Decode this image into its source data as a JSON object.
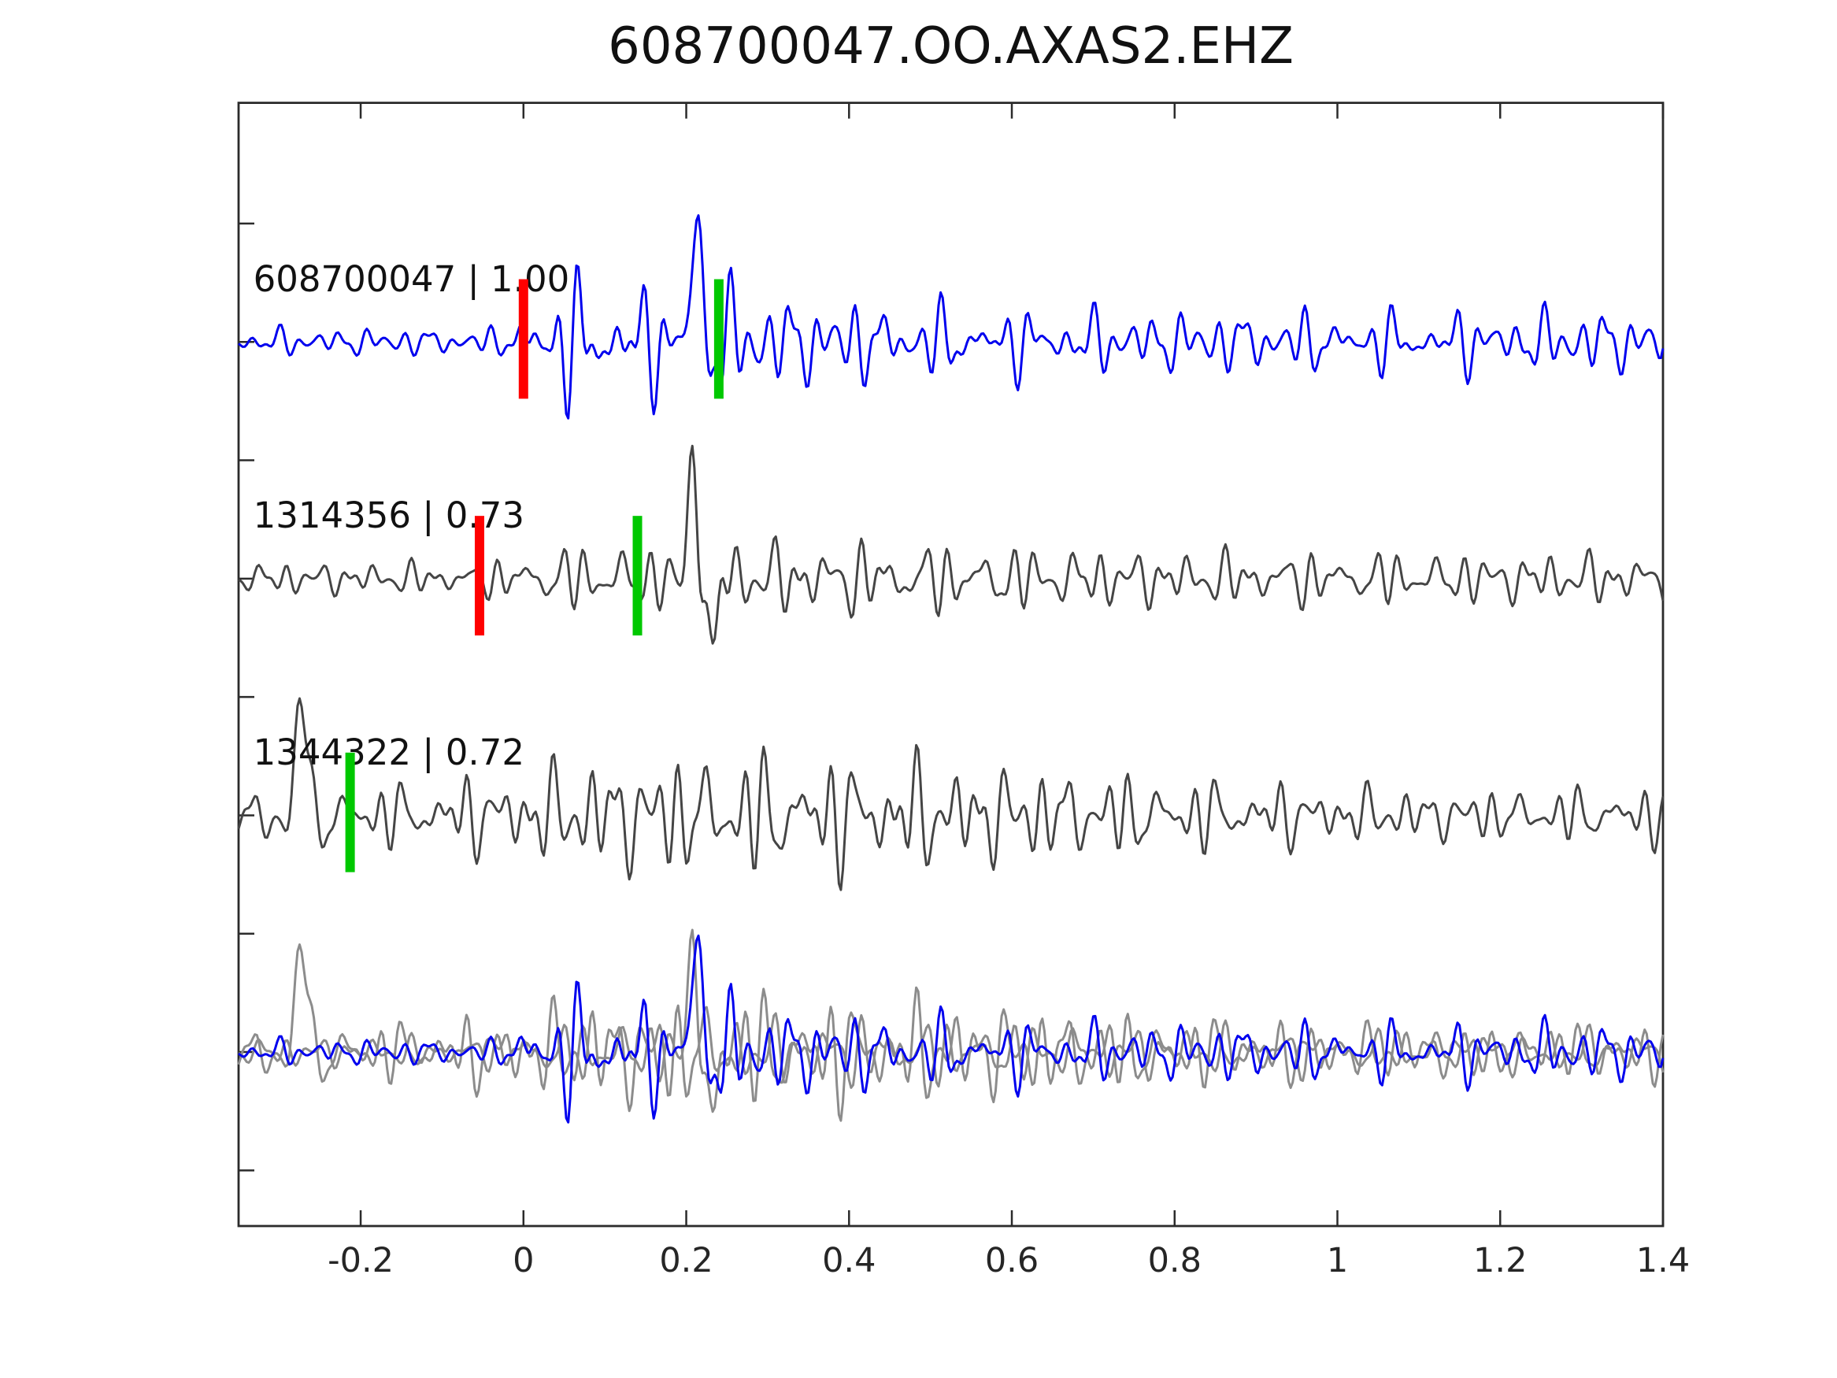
{
  "title": "608700047.OO.AXAS2.EHZ",
  "chart_data": {
    "type": "line",
    "title": "608700047.OO.AXAS2.EHZ",
    "xlabel": "",
    "ylabel": "",
    "xlim": [
      -0.35,
      1.4
    ],
    "ylim": [
      -0.47,
      9.02
    ],
    "grid": false,
    "legend": "none",
    "x_ticks": [
      {
        "v": -0.2,
        "label": "-0.2"
      },
      {
        "v": 0,
        "label": "0"
      },
      {
        "v": 0.2,
        "label": "0.2"
      },
      {
        "v": 0.4,
        "label": "0.4"
      },
      {
        "v": 0.6,
        "label": "0.6"
      },
      {
        "v": 0.8,
        "label": "0.8"
      },
      {
        "v": 1,
        "label": "1"
      },
      {
        "v": 1.2,
        "label": "1.2"
      },
      {
        "v": 1.4,
        "label": "1.4"
      }
    ],
    "y_ticks": [
      0,
      1,
      2,
      3,
      4,
      5,
      6,
      7,
      8
    ],
    "axis_color": "#2b2b2b",
    "marker_colors": {
      "pick-red": "#ff0000",
      "pick-green": "#00c800"
    },
    "label_x": -0.332,
    "traces": [
      {
        "id": "608700047",
        "score": "1.00",
        "label": "608700047 | 1.00",
        "color": "#0000ee",
        "baseline": 7,
        "markers": [
          {
            "type": "pick-red",
            "x": 0.0
          },
          {
            "type": "pick-green",
            "x": 0.24
          }
        ],
        "components": [
          {
            "f": 16,
            "a": 0.16,
            "p": 0.7
          },
          {
            "f": 27,
            "a": 0.24,
            "p": 2.1
          },
          {
            "f": 38,
            "a": 0.26,
            "p": 4.4
          },
          {
            "f": 47,
            "a": 0.2,
            "p": 1.2
          },
          {
            "f": 58,
            "a": 0.14,
            "p": 3.3
          }
        ],
        "envelope": [
          [
            -0.35,
            0.17
          ],
          [
            -0.02,
            0.17
          ],
          [
            0.01,
            0.6
          ],
          [
            0.05,
            0.8
          ],
          [
            0.12,
            0.73
          ],
          [
            0.18,
            0.63
          ],
          [
            0.23,
            0.8
          ],
          [
            0.3,
            0.6
          ],
          [
            0.45,
            0.47
          ],
          [
            0.7,
            0.39
          ],
          [
            1.0,
            0.37
          ],
          [
            1.2,
            0.39
          ],
          [
            1.4,
            0.41
          ]
        ],
        "spikes": [
          {
            "x0": 0.212,
            "A": 1.1,
            "w": 0.013,
            "T": 0.05
          }
        ]
      },
      {
        "id": "1314356",
        "score": "0.73",
        "label": "1314356 | 0.73",
        "color": "#454545",
        "baseline": 5,
        "markers": [
          {
            "type": "pick-red",
            "x": -0.054
          },
          {
            "type": "pick-green",
            "x": 0.14
          }
        ],
        "components": [
          {
            "f": 16,
            "a": 0.16,
            "p": 1.9
          },
          {
            "f": 27,
            "a": 0.24,
            "p": 0.3
          },
          {
            "f": 38,
            "a": 0.26,
            "p": 2.8
          },
          {
            "f": 47,
            "a": 0.2,
            "p": 5.1
          },
          {
            "f": 58,
            "a": 0.14,
            "p": 0.9
          }
        ],
        "envelope": [
          [
            -0.35,
            0.2
          ],
          [
            -0.05,
            0.21
          ],
          [
            0.0,
            0.32
          ],
          [
            0.08,
            0.41
          ],
          [
            0.17,
            0.41
          ],
          [
            0.25,
            0.47
          ],
          [
            0.4,
            0.45
          ],
          [
            0.6,
            0.4
          ],
          [
            0.8,
            0.35
          ],
          [
            1.1,
            0.32
          ],
          [
            1.4,
            0.33
          ]
        ],
        "spikes": [
          {
            "x0": 0.208,
            "A": 1.13,
            "w": 0.011,
            "T": 0.045
          },
          {
            "x0": 0.232,
            "A": -0.63,
            "w": 0.012,
            "T": 0.05
          }
        ]
      },
      {
        "id": "1344322",
        "score": "0.72",
        "label": "1344322 | 0.72",
        "color": "#454545",
        "baseline": 3,
        "markers": [
          {
            "type": "pick-green",
            "x": -0.213
          }
        ],
        "components": [
          {
            "f": 16,
            "a": 0.16,
            "p": 4.2
          },
          {
            "f": 27,
            "a": 0.24,
            "p": 1.1
          },
          {
            "f": 38,
            "a": 0.26,
            "p": 5.8
          },
          {
            "f": 47,
            "a": 0.2,
            "p": 2.6
          },
          {
            "f": 58,
            "a": 0.14,
            "p": 1.7
          }
        ],
        "envelope": [
          [
            -0.35,
            0.27
          ],
          [
            -0.31,
            0.37
          ],
          [
            -0.25,
            0.43
          ],
          [
            -0.2,
            0.37
          ],
          [
            -0.1,
            0.43
          ],
          [
            0.0,
            0.57
          ],
          [
            0.1,
            0.73
          ],
          [
            0.3,
            0.75
          ],
          [
            0.5,
            0.7
          ],
          [
            0.65,
            0.57
          ],
          [
            0.85,
            0.43
          ],
          [
            1.1,
            0.33
          ],
          [
            1.25,
            0.32
          ],
          [
            1.4,
            0.37
          ]
        ],
        "spikes": [
          {
            "x0": -0.272,
            "A": 1.03,
            "w": 0.016,
            "T": 0.06
          }
        ]
      }
    ],
    "overlay": {
      "baseline": 1,
      "scale": 0.92,
      "series": [
        {
          "ref": 1,
          "color": "#8c8c8c"
        },
        {
          "ref": 2,
          "color": "#8c8c8c"
        },
        {
          "ref": 0,
          "color": "#0000ee"
        }
      ]
    }
  }
}
